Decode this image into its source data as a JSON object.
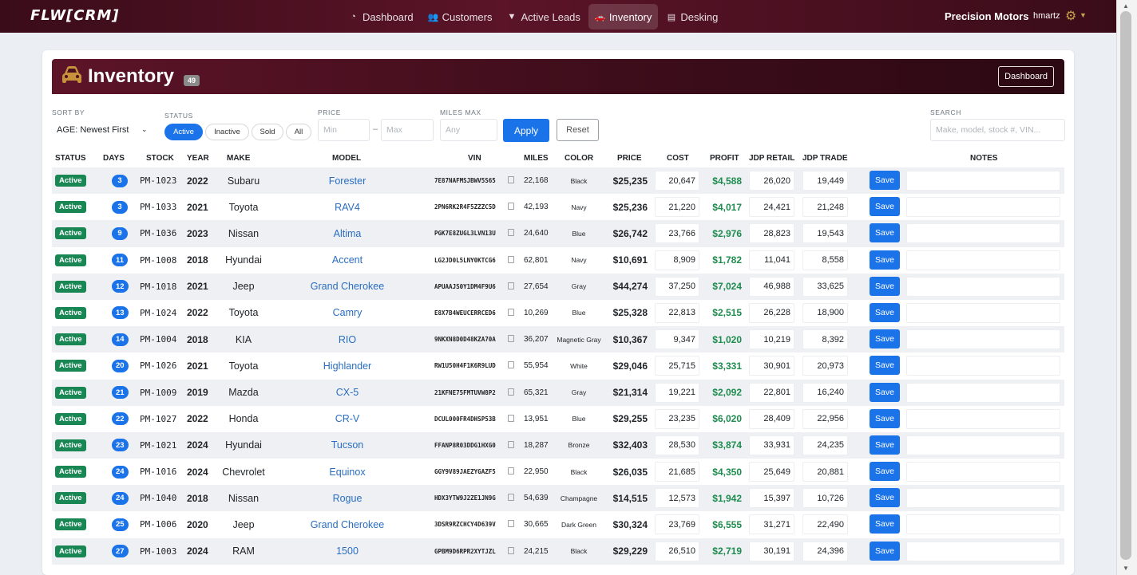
{
  "nav": {
    "logo": "FLW[CRM]",
    "links": [
      {
        "label": "Dashboard",
        "icon": "gauge-icon",
        "glyph": "◔"
      },
      {
        "label": "Customers",
        "icon": "users-icon",
        "glyph": "👥"
      },
      {
        "label": "Active Leads",
        "icon": "filter-icon",
        "glyph": "▼"
      },
      {
        "label": "Inventory",
        "icon": "car-icon",
        "glyph": "🚗"
      },
      {
        "label": "Desking",
        "icon": "clipboard-icon",
        "glyph": "▤"
      }
    ],
    "active": "Inventory",
    "dealer": "Precision Motors",
    "user": "hmartz"
  },
  "page": {
    "title": "Inventory",
    "count": "49",
    "dashboard_button": "Dashboard"
  },
  "filters": {
    "sort_label": "SORT BY",
    "sort_value": "AGE: Newest First",
    "status_label": "STATUS",
    "status_options": [
      "Active",
      "Inactive",
      "Sold",
      "All"
    ],
    "status_selected": "Active",
    "price_label": "PRICE",
    "price_min_placeholder": "Min",
    "price_max_placeholder": "Max",
    "price_sep": "–",
    "miles_label": "MILES MAX",
    "miles_placeholder": "Any",
    "apply": "Apply",
    "reset": "Reset",
    "search_label": "SEARCH",
    "search_placeholder": "Make, model, stock #, VIN..."
  },
  "table": {
    "columns": [
      "STATUS",
      "DAYS",
      "STOCK",
      "YEAR",
      "MAKE",
      "MODEL",
      "VIN",
      "MILES",
      "COLOR",
      "PRICE",
      "COST",
      "PROFIT",
      "JDP RETAIL",
      "JDP TRADE",
      "NOTES"
    ],
    "save_label": "Save",
    "rows": [
      {
        "status": "Active",
        "days": "3",
        "stock": "PM-1023",
        "year": "2022",
        "make": "Subaru",
        "model": "Forester",
        "vin": "7E87NAFMSJBWV5S65",
        "miles": "22,168",
        "color": "Black",
        "price": "$25,235",
        "cost": "20,647",
        "profit": "$4,588",
        "jdp_retail": "26,020",
        "jdp_trade": "19,449"
      },
      {
        "status": "Active",
        "days": "3",
        "stock": "PM-1033",
        "year": "2021",
        "make": "Toyota",
        "model": "RAV4",
        "vin": "2PN6RK2R4F5ZZZC5D",
        "miles": "42,193",
        "color": "Navy",
        "price": "$25,236",
        "cost": "21,220",
        "profit": "$4,017",
        "jdp_retail": "24,421",
        "jdp_trade": "21,248"
      },
      {
        "status": "Active",
        "days": "9",
        "stock": "PM-1036",
        "year": "2023",
        "make": "Nissan",
        "model": "Altima",
        "vin": "PGK7E8ZUGL3LVN13U",
        "miles": "24,640",
        "color": "Blue",
        "price": "$26,742",
        "cost": "23,766",
        "profit": "$2,976",
        "jdp_retail": "28,823",
        "jdp_trade": "19,543"
      },
      {
        "status": "Active",
        "days": "11",
        "stock": "PM-1008",
        "year": "2018",
        "make": "Hyundai",
        "model": "Accent",
        "vin": "LG2JD0L5LNY0KTCG6",
        "miles": "62,801",
        "color": "Navy",
        "price": "$10,691",
        "cost": "8,909",
        "profit": "$1,782",
        "jdp_retail": "11,041",
        "jdp_trade": "8,558"
      },
      {
        "status": "Active",
        "days": "12",
        "stock": "PM-1018",
        "year": "2021",
        "make": "Jeep",
        "model": "Grand Cherokee",
        "vin": "APUAAJS0Y1DM4F9U6",
        "miles": "27,654",
        "color": "Gray",
        "price": "$44,274",
        "cost": "37,250",
        "profit": "$7,024",
        "jdp_retail": "46,988",
        "jdp_trade": "33,625"
      },
      {
        "status": "Active",
        "days": "13",
        "stock": "PM-1024",
        "year": "2022",
        "make": "Toyota",
        "model": "Camry",
        "vin": "E8X7B4WEUCERRCED6",
        "miles": "10,269",
        "color": "Blue",
        "price": "$25,328",
        "cost": "22,813",
        "profit": "$2,515",
        "jdp_retail": "26,228",
        "jdp_trade": "18,900"
      },
      {
        "status": "Active",
        "days": "14",
        "stock": "PM-1004",
        "year": "2018",
        "make": "KIA",
        "model": "RIO",
        "vin": "9NKXN8D0D48KZA70A",
        "miles": "36,207",
        "color": "Magnetic Gray",
        "price": "$10,367",
        "cost": "9,347",
        "profit": "$1,020",
        "jdp_retail": "10,219",
        "jdp_trade": "8,392"
      },
      {
        "status": "Active",
        "days": "20",
        "stock": "PM-1026",
        "year": "2021",
        "make": "Toyota",
        "model": "Highlander",
        "vin": "RW1U50H4F1K6R9LUD",
        "miles": "55,954",
        "color": "White",
        "price": "$29,046",
        "cost": "25,715",
        "profit": "$3,331",
        "jdp_retail": "30,901",
        "jdp_trade": "20,973"
      },
      {
        "status": "Active",
        "days": "21",
        "stock": "PM-1009",
        "year": "2019",
        "make": "Mazda",
        "model": "CX-5",
        "vin": "21KFNE75FMTUVW8P2",
        "miles": "65,321",
        "color": "Gray",
        "price": "$21,314",
        "cost": "19,221",
        "profit": "$2,092",
        "jdp_retail": "22,801",
        "jdp_trade": "16,240"
      },
      {
        "status": "Active",
        "days": "22",
        "stock": "PM-1027",
        "year": "2022",
        "make": "Honda",
        "model": "CR-V",
        "vin": "DCUL000FR4DHSP53B",
        "miles": "13,951",
        "color": "Blue",
        "price": "$29,255",
        "cost": "23,235",
        "profit": "$6,020",
        "jdp_retail": "28,409",
        "jdp_trade": "22,956"
      },
      {
        "status": "Active",
        "days": "23",
        "stock": "PM-1021",
        "year": "2024",
        "make": "Hyundai",
        "model": "Tucson",
        "vin": "FFANP8R03DDG1HXG0",
        "miles": "18,287",
        "color": "Bronze",
        "price": "$32,403",
        "cost": "28,530",
        "profit": "$3,874",
        "jdp_retail": "33,931",
        "jdp_trade": "24,235"
      },
      {
        "status": "Active",
        "days": "24",
        "stock": "PM-1016",
        "year": "2024",
        "make": "Chevrolet",
        "model": "Equinox",
        "vin": "GGY9V89JAEZYGAZF5",
        "miles": "22,950",
        "color": "Black",
        "price": "$26,035",
        "cost": "21,685",
        "profit": "$4,350",
        "jdp_retail": "25,649",
        "jdp_trade": "20,881"
      },
      {
        "status": "Active",
        "days": "24",
        "stock": "PM-1040",
        "year": "2018",
        "make": "Nissan",
        "model": "Rogue",
        "vin": "HDX3YTW9J2ZE1JN9G",
        "miles": "54,639",
        "color": "Champagne",
        "price": "$14,515",
        "cost": "12,573",
        "profit": "$1,942",
        "jdp_retail": "15,397",
        "jdp_trade": "10,726"
      },
      {
        "status": "Active",
        "days": "25",
        "stock": "PM-1006",
        "year": "2020",
        "make": "Jeep",
        "model": "Grand Cherokee",
        "vin": "3DSR9RZCHCY4D639V",
        "miles": "30,665",
        "color": "Dark Green",
        "price": "$30,324",
        "cost": "23,769",
        "profit": "$6,555",
        "jdp_retail": "31,271",
        "jdp_trade": "22,490"
      },
      {
        "status": "Active",
        "days": "27",
        "stock": "PM-1003",
        "year": "2024",
        "make": "RAM",
        "model": "1500",
        "vin": "GPBM9D6RPR2XYTJZL",
        "miles": "24,215",
        "color": "Black",
        "price": "$29,229",
        "cost": "26,510",
        "profit": "$2,719",
        "jdp_retail": "30,191",
        "jdp_trade": "24,396"
      }
    ]
  },
  "colors": {
    "brand": "#5b1428",
    "primary": "#1a73e8",
    "success": "#198754",
    "profit": "#1e8c4e",
    "link": "#2a6ec2"
  }
}
